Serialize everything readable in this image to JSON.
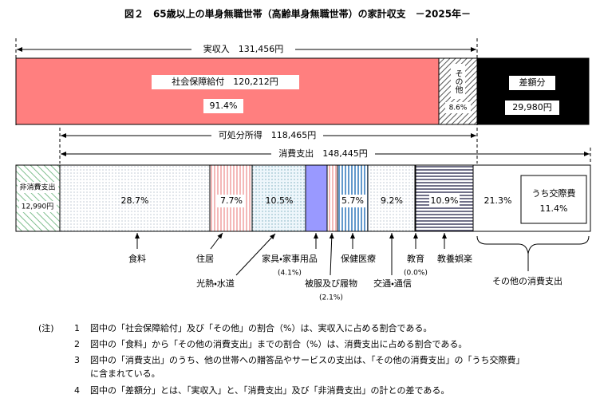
{
  "title": "図２　65歳以上の単身無職世帯（高齢単身無職世帯）の家計収支　－2025年－",
  "income": "実収入　131,456円",
  "social_security": {
    "label": "社会保障給付　120,212円",
    "share": "91.4%"
  },
  "other_income": {
    "label": "その他",
    "share": "8.6%"
  },
  "deficit": {
    "label": "差額分",
    "amount": "29,980円"
  },
  "disposable": "可処分所得　118,465円",
  "consumption": "消費支出　148,445円",
  "non_consumption": {
    "label": "非消費支出",
    "amount": "12,990円"
  },
  "items": [
    {
      "label": "食料",
      "share": "28.7%"
    },
    {
      "label": "住居",
      "share": "7.7%"
    },
    {
      "label": "光熱・水道",
      "share": "10.5%"
    },
    {
      "label": "家具・家事用品",
      "share": "(4.1%)"
    },
    {
      "label": "被服及び履物",
      "share": "(2.1%)"
    },
    {
      "label": "保健医療",
      "share": "5.7%"
    },
    {
      "label": "交通・通信",
      "share": "9.2%"
    },
    {
      "label": "教育",
      "share": "(0.0%)"
    },
    {
      "label": "教養娯楽",
      "share": "10.9%"
    },
    {
      "label": "その他の消費支出",
      "share": "21.3%"
    }
  ],
  "social_expense": {
    "label": "うち交際費",
    "share": "11.4%"
  },
  "notes": {
    "marker": "(注)",
    "items": [
      {
        "number": "1",
        "lines": [
          "図中の「社会保障給付」及び「その他」の割合（%）は、実収入に占める割合である。"
        ]
      },
      {
        "number": "2",
        "lines": [
          "図中の「食料」から「その他の消費支出」までの割合（%）は、消費支出に占める割合である。"
        ]
      },
      {
        "number": "3",
        "lines": [
          "図中の「消費支出」のうち、他の世帯への贈答品やサービスの支出は、「その他の消費支出」の「うち交際費」",
          "に含まれている。"
        ]
      },
      {
        "number": "4",
        "lines": [
          "図中の「差額分」とは、「実収入」と、「消費支出」及び「非消費支出」の計との差である。"
        ]
      }
    ]
  }
}
